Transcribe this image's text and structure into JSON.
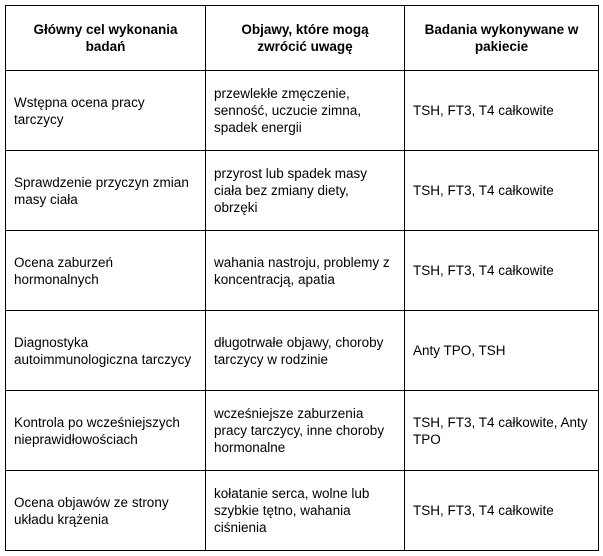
{
  "table": {
    "header": [
      "Główny cel wykonania badań",
      "Objawy, które mogą zwrócić uwagę",
      "Badania wykonywane w pakiecie"
    ],
    "rows": [
      [
        "Wstępna ocena pracy tarczycy",
        "przewlekłe zmęczenie, senność, uczucie zimna, spadek energii",
        "TSH, FT3, T4 całkowite"
      ],
      [
        "Sprawdzenie przyczyn zmian masy ciała",
        "przyrost lub spadek masy ciała bez zmiany diety, obrzęki",
        "TSH, FT3, T4 całkowite"
      ],
      [
        "Ocena zaburzeń hormonalnych",
        "wahania nastroju, problemy z koncentracją, apatia",
        "TSH, FT3, T4 całkowite"
      ],
      [
        "Diagnostyka autoimmunologiczna tarczycy",
        "długotrwałe objawy, choroby tarczycy w rodzinie",
        "Anty TPO, TSH"
      ],
      [
        "Kontrola po wcześniejszych nieprawidłowościach",
        "wcześniejsze zaburzenia pracy tarczycy, inne choroby hormonalne",
        "TSH, FT3, T4 całkowite, Anty TPO"
      ],
      [
        "Ocena objawów ze strony układu krążenia",
        "kołatanie serca, wolne lub szybkie tętno, wahania ciśnienia",
        "TSH, FT3, T4 całkowite"
      ]
    ]
  }
}
